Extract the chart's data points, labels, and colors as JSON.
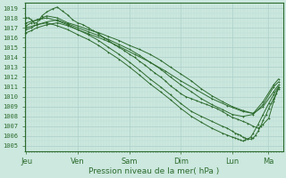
{
  "bg_color": "#cce8df",
  "plot_bg_color": "#cce8df",
  "grid_major_color": "#aacfc7",
  "grid_minor_color": "#bbddd5",
  "line_color": "#2d6b2d",
  "xlabel": "Pression niveau de la mer( hPa )",
  "x_ticks": [
    "Jeu",
    "Ven",
    "Sam",
    "Dim",
    "Lun",
    "Ma"
  ],
  "x_tick_pos": [
    0.0,
    0.833,
    1.667,
    2.5,
    3.333,
    3.917
  ],
  "ylim": [
    1004.5,
    1019.5
  ],
  "yticks": [
    1005,
    1006,
    1007,
    1008,
    1009,
    1010,
    1011,
    1012,
    1013,
    1014,
    1015,
    1016,
    1017,
    1018,
    1019
  ],
  "xlim": [
    -0.02,
    4.15
  ],
  "lines": [
    {
      "x": [
        0.0,
        0.04,
        0.08,
        0.12,
        0.17,
        0.21,
        0.25,
        0.33,
        0.42,
        0.5,
        0.58,
        0.67,
        0.75,
        0.83,
        0.92,
        1.0,
        1.08,
        1.17,
        1.25,
        1.33,
        1.42,
        1.5,
        1.58,
        1.67,
        1.75,
        1.83,
        1.92,
        2.0,
        2.08,
        2.17,
        2.25,
        2.33,
        2.42,
        2.5,
        2.58,
        2.67,
        2.75,
        2.83,
        2.92,
        3.0,
        3.08,
        3.17,
        3.25,
        3.33,
        3.42,
        3.5,
        3.58,
        3.67,
        3.75,
        3.83,
        3.92,
        4.0,
        4.08
      ],
      "y": [
        1018.0,
        1018.0,
        1017.8,
        1017.5,
        1017.5,
        1017.8,
        1018.2,
        1018.6,
        1018.9,
        1019.1,
        1018.7,
        1018.3,
        1017.8,
        1017.5,
        1017.3,
        1017.0,
        1016.7,
        1016.4,
        1016.0,
        1015.7,
        1015.3,
        1015.0,
        1014.7,
        1014.3,
        1014.0,
        1013.6,
        1013.2,
        1012.8,
        1012.4,
        1012.0,
        1011.6,
        1011.1,
        1010.7,
        1010.3,
        1010.0,
        1009.8,
        1009.6,
        1009.4,
        1009.2,
        1009.0,
        1008.8,
        1008.5,
        1008.2,
        1007.9,
        1007.7,
        1007.5,
        1007.3,
        1007.0,
        1006.8,
        1007.2,
        1007.8,
        1009.5,
        1011.0
      ]
    },
    {
      "x": [
        0.0,
        0.08,
        0.17,
        0.25,
        0.33,
        0.5,
        0.67,
        0.83,
        1.0,
        1.17,
        1.33,
        1.5,
        1.67,
        1.83,
        2.0,
        2.17,
        2.33,
        2.5,
        2.67,
        2.83,
        3.0,
        3.17,
        3.33,
        3.5,
        3.67,
        3.83,
        4.0,
        4.08
      ],
      "y": [
        1017.2,
        1017.5,
        1017.8,
        1018.0,
        1018.2,
        1018.0,
        1017.5,
        1017.2,
        1016.8,
        1016.5,
        1016.1,
        1015.7,
        1015.2,
        1014.8,
        1014.3,
        1013.7,
        1013.0,
        1012.3,
        1011.6,
        1010.8,
        1010.1,
        1009.5,
        1009.0,
        1008.6,
        1008.3,
        1009.0,
        1010.5,
        1011.2
      ]
    },
    {
      "x": [
        0.0,
        0.08,
        0.17,
        0.33,
        0.5,
        0.67,
        0.83,
        1.0,
        1.17,
        1.33,
        1.5,
        1.67,
        1.83,
        2.0,
        2.17,
        2.33,
        2.5,
        2.67,
        2.83,
        3.0,
        3.17,
        3.33,
        3.5,
        3.67,
        3.83,
        4.0,
        4.08
      ],
      "y": [
        1016.8,
        1017.0,
        1017.3,
        1017.6,
        1017.8,
        1017.4,
        1017.0,
        1016.6,
        1016.2,
        1015.8,
        1015.3,
        1014.8,
        1014.2,
        1013.5,
        1012.8,
        1012.0,
        1011.2,
        1010.5,
        1009.8,
        1009.2,
        1008.7,
        1008.2,
        1008.0,
        1008.2,
        1009.2,
        1011.0,
        1011.5
      ]
    },
    {
      "x": [
        0.0,
        0.08,
        0.17,
        0.33,
        0.5,
        0.67,
        0.83,
        1.0,
        1.25,
        1.5,
        1.75,
        2.0,
        2.25,
        2.5,
        2.75,
        3.0,
        3.25,
        3.5,
        3.67,
        3.83,
        4.0,
        4.08
      ],
      "y": [
        1016.5,
        1016.7,
        1017.0,
        1017.3,
        1017.5,
        1017.2,
        1016.8,
        1016.4,
        1015.8,
        1015.1,
        1014.3,
        1013.5,
        1012.6,
        1011.6,
        1010.7,
        1009.8,
        1009.1,
        1008.5,
        1008.3,
        1009.5,
        1011.2,
        1011.8
      ]
    },
    {
      "x": [
        0.0,
        0.17,
        0.33,
        0.5,
        0.67,
        0.83,
        1.0,
        1.17,
        1.33,
        1.5,
        1.67,
        1.83,
        2.0,
        2.17,
        2.33,
        2.5,
        2.67,
        2.83,
        3.0,
        3.17,
        3.25,
        3.33,
        3.38,
        3.42,
        3.46,
        3.5,
        3.54,
        3.58,
        3.63,
        3.67,
        3.71,
        3.75,
        3.79,
        3.83,
        3.88,
        3.92,
        3.96,
        4.0,
        4.04,
        4.08
      ],
      "y": [
        1017.5,
        1017.8,
        1018.0,
        1017.7,
        1017.3,
        1016.8,
        1016.3,
        1015.7,
        1015.0,
        1014.3,
        1013.5,
        1012.7,
        1011.8,
        1011.0,
        1010.2,
        1009.3,
        1008.5,
        1008.0,
        1007.5,
        1007.0,
        1006.8,
        1006.5,
        1006.3,
        1006.2,
        1006.1,
        1005.9,
        1005.8,
        1005.7,
        1005.7,
        1005.8,
        1006.1,
        1006.5,
        1007.0,
        1007.6,
        1008.2,
        1008.8,
        1009.3,
        1009.8,
        1010.3,
        1010.8
      ]
    },
    {
      "x": [
        0.0,
        0.17,
        0.33,
        0.5,
        0.67,
        0.83,
        1.0,
        1.17,
        1.33,
        1.5,
        1.67,
        1.83,
        2.0,
        2.17,
        2.33,
        2.5,
        2.67,
        2.83,
        3.0,
        3.17,
        3.25,
        3.33,
        3.38,
        3.42,
        3.46,
        3.5,
        3.54,
        3.58,
        3.63,
        3.67,
        3.75,
        3.83,
        3.92,
        4.0,
        4.08
      ],
      "y": [
        1017.0,
        1017.3,
        1017.5,
        1017.2,
        1016.8,
        1016.3,
        1015.8,
        1015.2,
        1014.5,
        1013.8,
        1013.0,
        1012.2,
        1011.3,
        1010.5,
        1009.7,
        1008.8,
        1008.0,
        1007.4,
        1006.8,
        1006.3,
        1006.1,
        1005.9,
        1005.8,
        1005.7,
        1005.6,
        1005.5,
        1005.6,
        1005.7,
        1005.9,
        1006.3,
        1007.2,
        1008.2,
        1009.3,
        1010.2,
        1011.0
      ]
    }
  ]
}
